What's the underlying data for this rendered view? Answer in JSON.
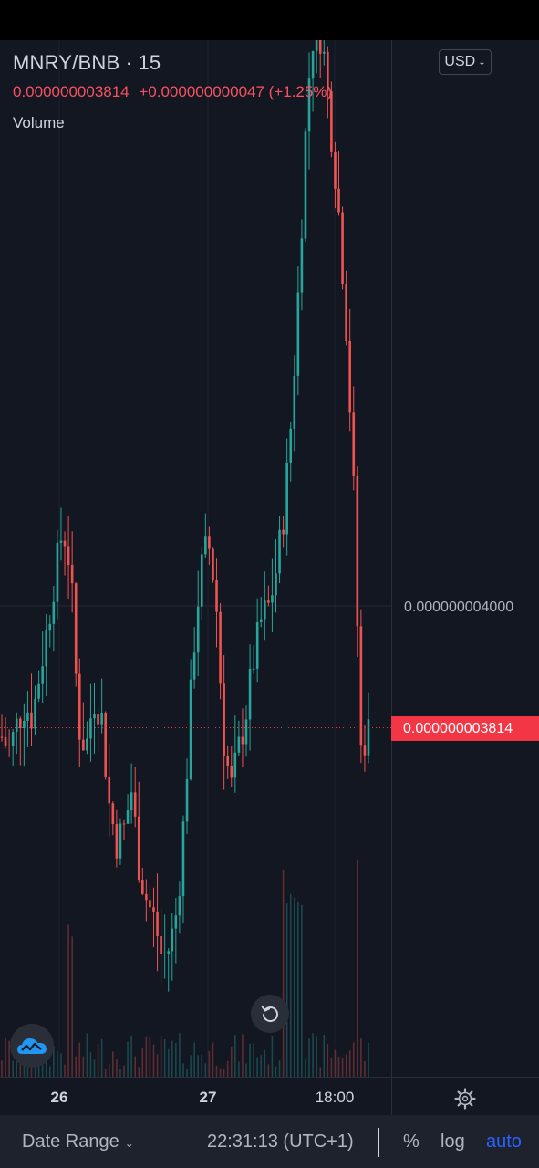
{
  "header": {
    "symbol": "MNRY/BNB · 15",
    "last_price": "0.000000003814",
    "change": "+0.000000000047 (+1.25%)",
    "volume_label": "Volume"
  },
  "currency_selector": {
    "label": "USD"
  },
  "price_axis": {
    "labels": [
      "0.000000004000"
    ],
    "last_price_tag": "0.000000003814"
  },
  "time_axis": {
    "labels": [
      "26",
      "27",
      "18:00"
    ]
  },
  "bottom_bar": {
    "date_range": "Date Range",
    "clock": "22:31:13 (UTC+1)",
    "percent": "%",
    "log": "log",
    "auto": "auto"
  },
  "icons": {
    "settings": "gear-icon",
    "reset": "reset-chart-icon",
    "logo": "tradingview-cloud-logo-icon"
  },
  "colors": {
    "up": "#26a69a",
    "down": "#ef5350",
    "background": "#131722",
    "last_price": "#f23645",
    "auto_active": "#2962ff"
  },
  "chart_data": {
    "type": "candlestick",
    "series_closes": [
      3.8,
      3.78,
      3.82,
      3.85,
      3.83,
      3.9,
      3.97,
      4.05,
      4.12,
      4.06,
      3.82,
      3.78,
      3.86,
      3.84,
      3.7,
      3.64,
      3.66,
      3.72,
      3.6,
      3.55,
      3.52,
      3.46,
      3.48,
      3.54,
      3.7,
      3.92,
      4.05,
      4.1,
      4.02,
      3.8,
      3.72,
      3.78,
      3.84,
      3.92,
      3.98,
      4.0,
      4.06,
      4.15,
      4.3,
      4.52,
      4.78,
      4.9,
      4.86,
      4.74,
      4.62,
      4.45,
      4.2,
      3.78,
      3.81
    ],
    "y_ref": 4.0,
    "last": 3.814
  }
}
